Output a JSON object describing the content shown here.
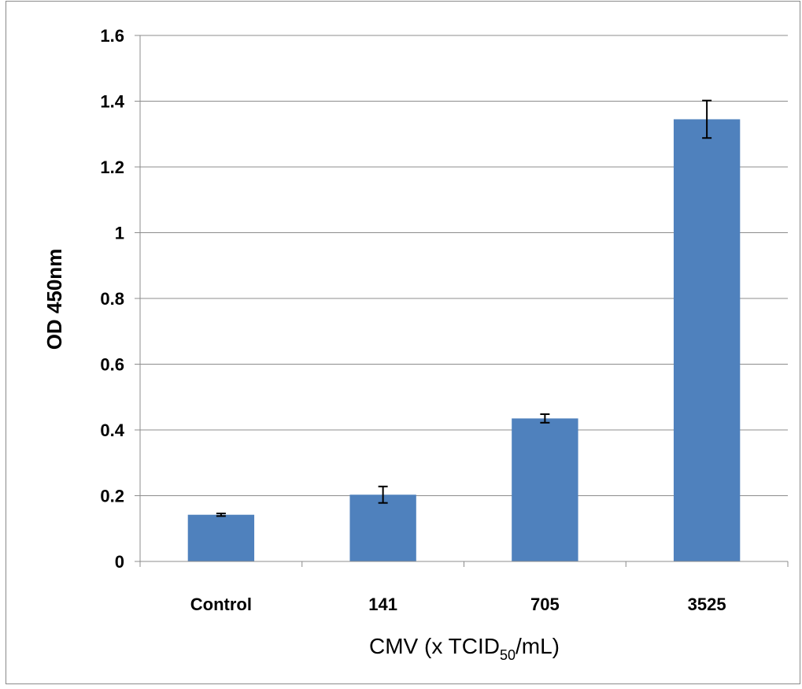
{
  "chart_data": {
    "type": "bar",
    "categories": [
      "Control",
      "141",
      "705",
      "3525"
    ],
    "values": [
      0.142,
      0.203,
      0.435,
      1.345
    ],
    "error": [
      0.004,
      0.025,
      0.013,
      0.057
    ],
    "ylabel": "OD 450nm",
    "xlabel": {
      "prefix": "CMV (x TCID",
      "subscript": "50",
      "suffix": "/mL)"
    },
    "ylim": [
      0,
      1.6
    ],
    "yticks": [
      0,
      0.2,
      0.4,
      0.6,
      0.8,
      1,
      1.2,
      1.4,
      1.6
    ],
    "ytick_labels": [
      "0",
      "0.2",
      "0.4",
      "0.6",
      "0.8",
      "1",
      "1.2",
      "1.4",
      "1.6"
    ],
    "grid": true,
    "bar_color": "#4f81bd",
    "grid_color": "#8c8c8c"
  }
}
